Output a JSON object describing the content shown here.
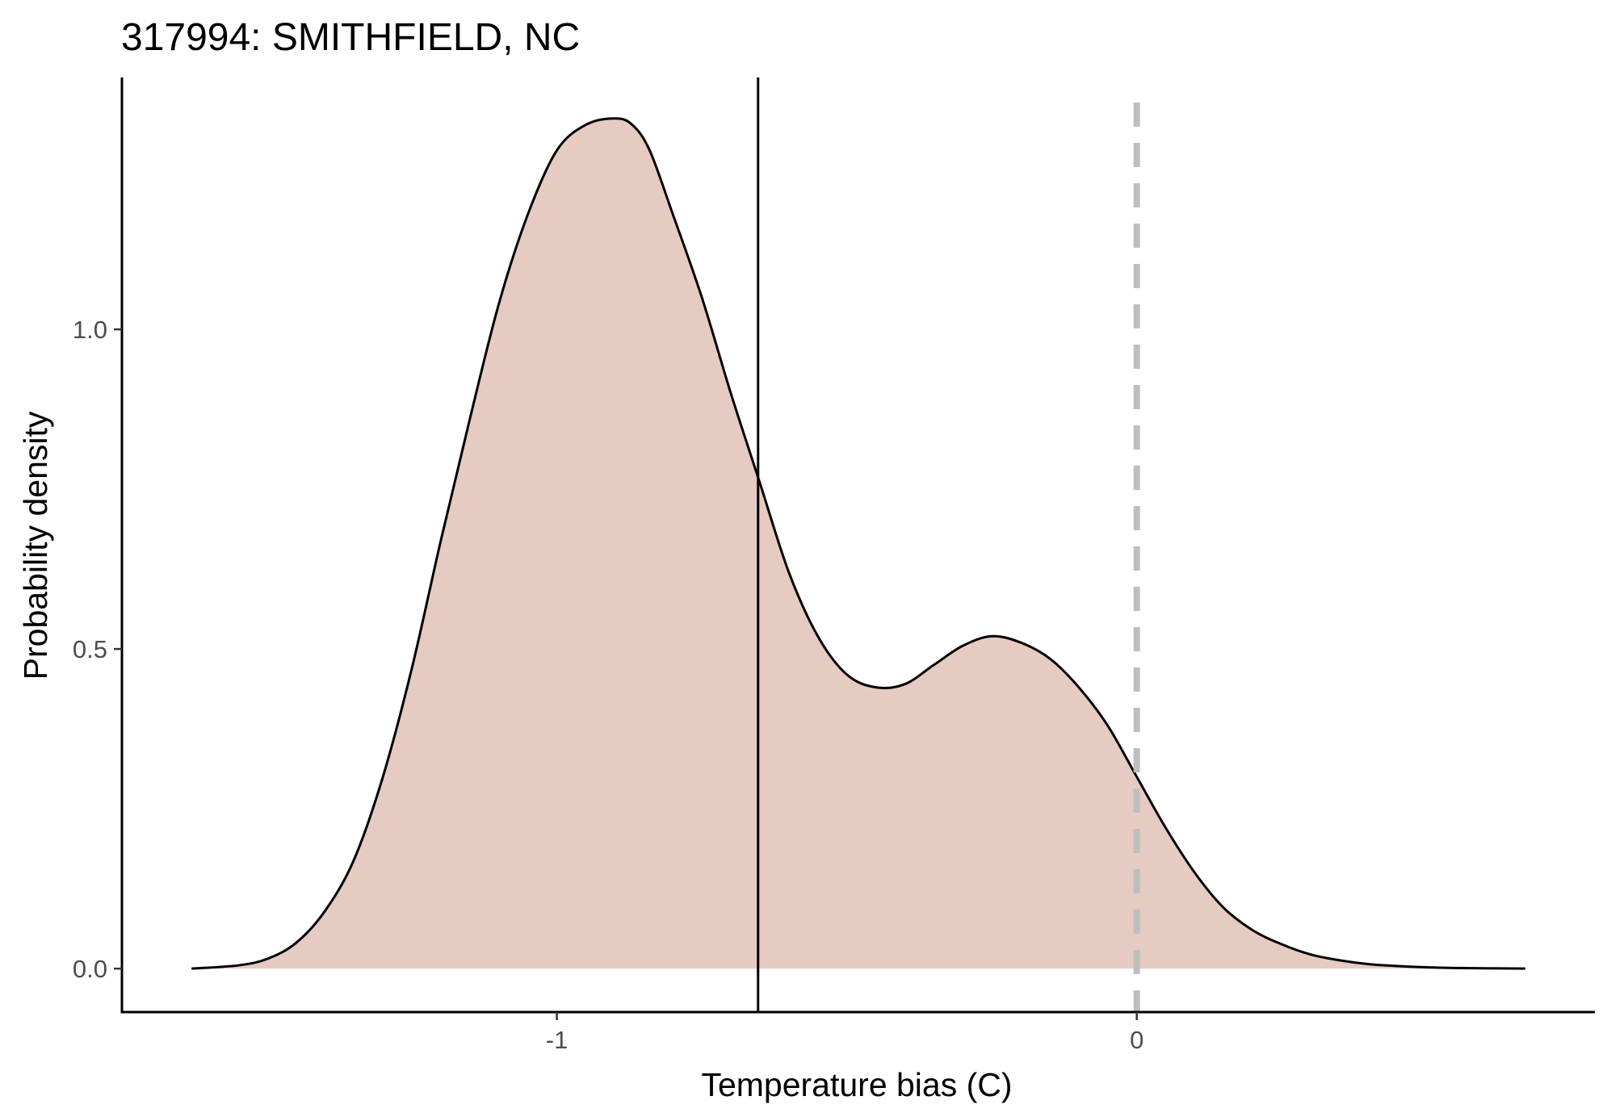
{
  "chart_data": {
    "type": "area",
    "title": "317994: SMITHFIELD, NC",
    "xlabel": "Temperature bias (C)",
    "ylabel": "Probability density",
    "xlim": [
      -1.75,
      0.79
    ],
    "ylim": [
      -0.068,
      1.394
    ],
    "x_ticks": [
      -1,
      0
    ],
    "x_tick_labels": [
      "-1",
      "0"
    ],
    "y_ticks": [
      0.0,
      0.5,
      1.0
    ],
    "y_tick_labels": [
      "0.0",
      "0.5",
      "1.0"
    ],
    "grid": false,
    "legend": "none",
    "colors": {
      "fill": "#e6cbc3",
      "line": "#000000",
      "reference_line": "#000000",
      "zero_line": "#bebebe"
    },
    "series": [
      {
        "x": [
          -1.63,
          -1.55,
          -1.5,
          -1.45,
          -1.4,
          -1.35,
          -1.3,
          -1.25,
          -1.2,
          -1.15,
          -1.1,
          -1.05,
          -1.0,
          -0.95,
          -0.9,
          -0.87,
          -0.84,
          -0.8,
          -0.75,
          -0.7,
          -0.65,
          -0.6,
          -0.55,
          -0.5,
          -0.45,
          -0.4,
          -0.35,
          -0.3,
          -0.25,
          -0.2,
          -0.15,
          -0.1,
          -0.05,
          0.0,
          0.05,
          0.1,
          0.15,
          0.2,
          0.25,
          0.3,
          0.35,
          0.4,
          0.45,
          0.5,
          0.55,
          0.6,
          0.67
        ],
        "y": [
          0.0,
          0.005,
          0.015,
          0.04,
          0.09,
          0.17,
          0.3,
          0.47,
          0.67,
          0.86,
          1.04,
          1.18,
          1.28,
          1.32,
          1.33,
          1.32,
          1.28,
          1.18,
          1.05,
          0.9,
          0.76,
          0.62,
          0.52,
          0.46,
          0.44,
          0.445,
          0.475,
          0.505,
          0.52,
          0.51,
          0.485,
          0.44,
          0.38,
          0.3,
          0.22,
          0.15,
          0.095,
          0.06,
          0.038,
          0.022,
          0.013,
          0.007,
          0.004,
          0.002,
          0.001,
          0.0005,
          0.0
        ]
      }
    ],
    "reference_lines": [
      {
        "x": -0.653,
        "style": "solid"
      },
      {
        "x": 0.0,
        "style": "dashed"
      }
    ]
  }
}
